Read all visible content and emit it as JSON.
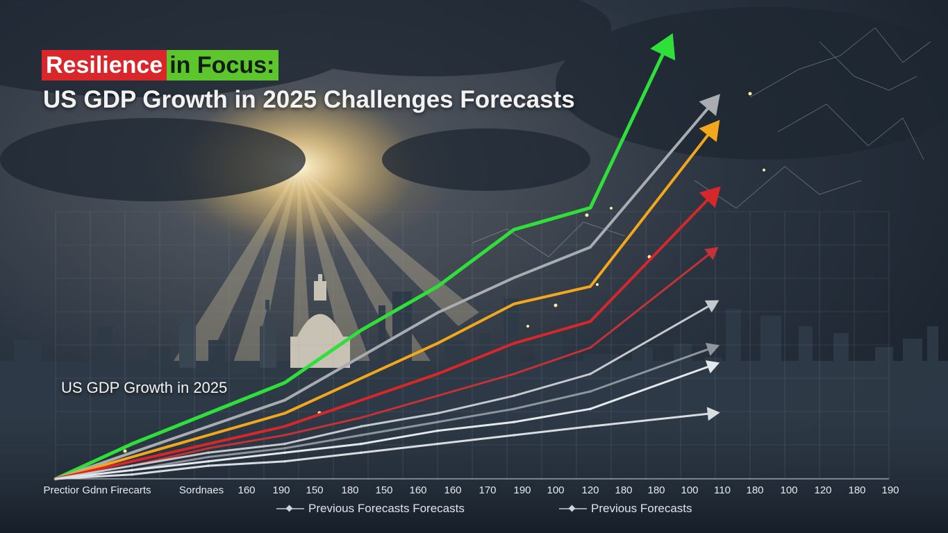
{
  "title": {
    "highlight_red": "Resilience",
    "highlight_green": "in Focus:",
    "subtitle": "US GDP Growth in 2025 Challenges Forecasts"
  },
  "inner_label": "US GDP Growth in 2025",
  "legend": [
    {
      "label": "Previous Forecasts Forecasts"
    },
    {
      "label": "Previous Forecasts"
    }
  ],
  "colors": {
    "background": "#1b2531",
    "green": "#2fe03a",
    "gray": "#a9adb2",
    "orange": "#f2a71c",
    "red": "#d6282b",
    "light": "#e4e7eb"
  },
  "chart_data": {
    "type": "line",
    "title": "US GDP Growth in 2025",
    "x_tick_labels": [
      "Prectior Gdnn Firecarts",
      "Sordnaes",
      "160",
      "190",
      "150",
      "180",
      "150",
      "160",
      "160",
      "170",
      "190",
      "100",
      "120",
      "180",
      "180",
      "100",
      "110",
      "180",
      "100",
      "120",
      "180",
      "190"
    ],
    "grid": true,
    "ylim": [
      0,
      100
    ],
    "x": [
      0,
      1,
      2,
      3,
      4,
      5,
      6,
      7,
      8,
      9,
      10
    ],
    "series": [
      {
        "color": "#2fe03a",
        "values": [
          0,
          8,
          15,
          22,
          34,
          44,
          57,
          62,
          99
        ],
        "x": [
          0,
          1,
          2,
          3,
          4,
          5,
          6,
          7,
          8
        ]
      },
      {
        "color": "#a9adb2",
        "values": [
          0,
          6,
          12,
          18,
          28,
          38,
          46,
          53,
          86
        ],
        "x": [
          0,
          1,
          2,
          3,
          4,
          5,
          6,
          7,
          8.6
        ]
      },
      {
        "color": "#f2a71c",
        "values": [
          0,
          5,
          10,
          15,
          23,
          31,
          40,
          44,
          80
        ],
        "x": [
          0,
          1,
          2,
          3,
          4,
          5,
          6,
          7,
          8.6
        ]
      },
      {
        "color": "#d6282b",
        "values": [
          0,
          4,
          8,
          12,
          18,
          24,
          31,
          36,
          65
        ],
        "x": [
          0,
          1,
          2,
          3,
          4,
          5,
          6,
          7,
          8.6
        ]
      },
      {
        "color": "#c23236",
        "values": [
          0,
          3,
          7,
          10,
          14,
          19,
          24,
          30,
          52
        ],
        "x": [
          0,
          1,
          2,
          3,
          4,
          5,
          6,
          7,
          8.6
        ]
      },
      {
        "color": "#c5c9ce",
        "values": [
          0,
          3,
          6,
          8,
          12,
          15,
          19,
          24,
          40
        ],
        "x": [
          0,
          1,
          2,
          3,
          4,
          5,
          6,
          7,
          8.6
        ]
      },
      {
        "color": "#8f959c",
        "values": [
          0,
          2,
          5,
          7,
          10,
          13,
          16,
          20,
          30
        ],
        "x": [
          0,
          1,
          2,
          3,
          4,
          5,
          6,
          7,
          8.6
        ]
      },
      {
        "color": "#e4e7eb",
        "values": [
          0,
          2,
          4,
          6,
          8,
          11,
          13,
          16,
          26
        ],
        "x": [
          0,
          1,
          2,
          3,
          4,
          5,
          6,
          7,
          8.6
        ]
      },
      {
        "color": "#d9dce0",
        "values": [
          0,
          1,
          3,
          4,
          6,
          8,
          10,
          12,
          15
        ],
        "x": [
          0,
          1,
          2,
          3,
          4,
          5,
          6,
          7,
          8.6
        ]
      }
    ]
  }
}
